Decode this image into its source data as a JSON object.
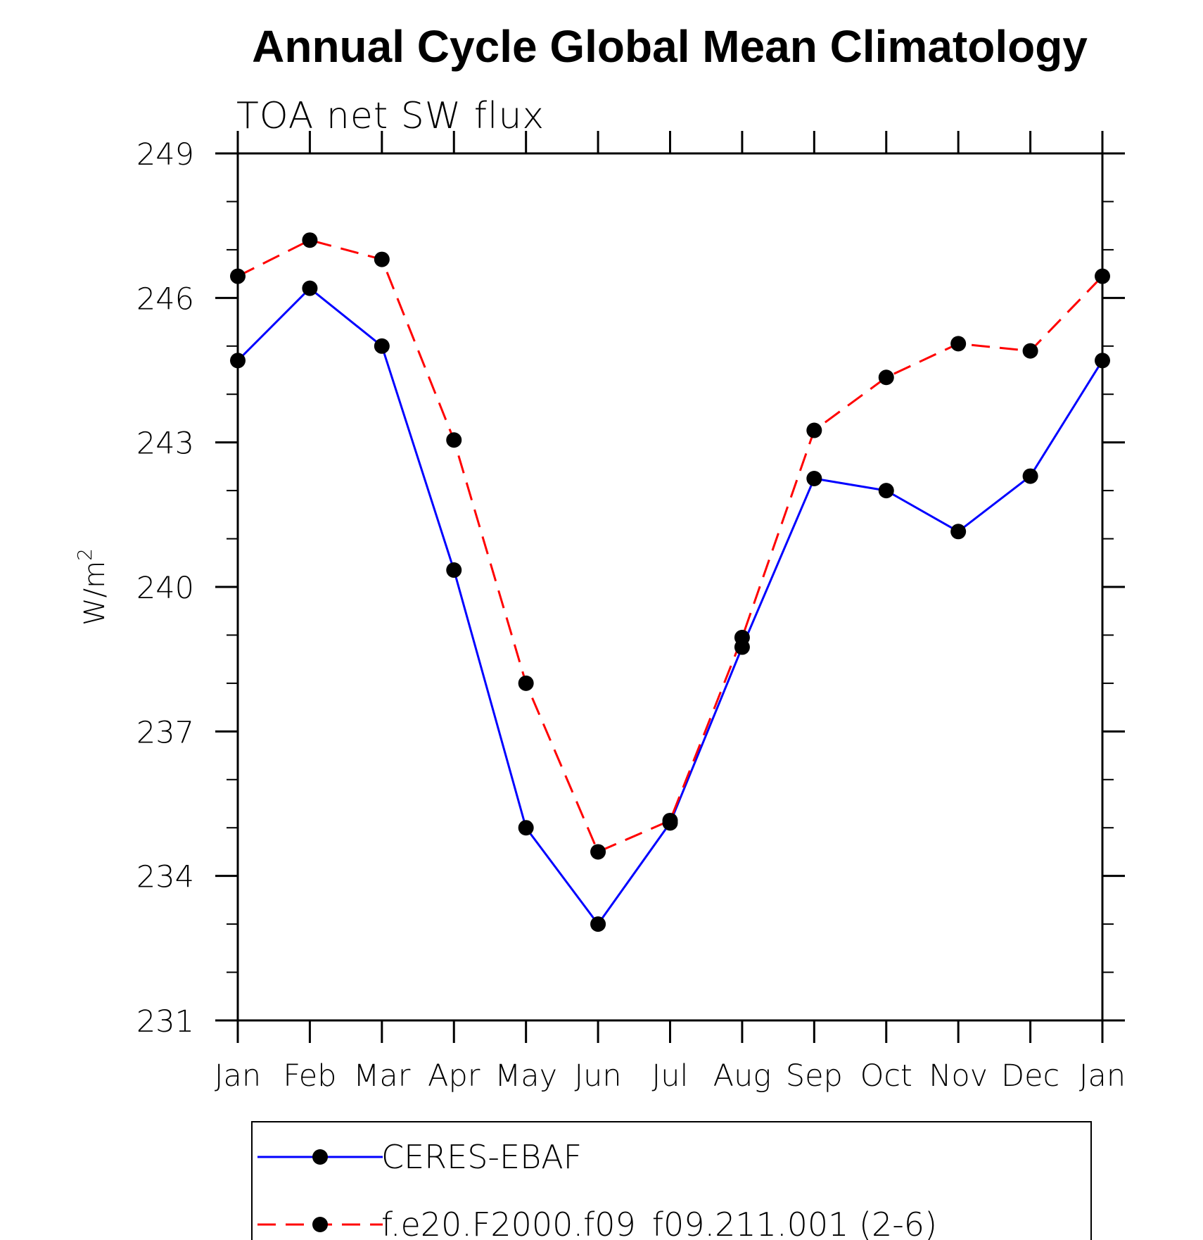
{
  "chart_data": {
    "type": "line",
    "title": "Annual Cycle Global Mean Climatology",
    "subtitle": "TOA net SW flux",
    "ylabel": "W/m",
    "ylabel_superscript": "2",
    "xlabel": "",
    "categories": [
      "Jan",
      "Feb",
      "Mar",
      "Apr",
      "May",
      "Jun",
      "Jul",
      "Aug",
      "Sep",
      "Oct",
      "Nov",
      "Dec",
      "Jan"
    ],
    "ylim": [
      231,
      249
    ],
    "yticks": [
      231,
      234,
      237,
      240,
      243,
      246,
      249
    ],
    "grid": false,
    "legend_position": "bottom",
    "series": [
      {
        "name": "CERES-EBAF",
        "color": "#0000ff",
        "dash": "solid",
        "marker": "filled-circle",
        "values": [
          244.7,
          246.2,
          245.0,
          240.35,
          235.0,
          233.0,
          235.1,
          238.75,
          242.25,
          242.0,
          241.15,
          242.3,
          244.7
        ]
      },
      {
        "name": "f.e20.F2000.f09_f09.211.001 (2-6)",
        "color": "#ff0000",
        "dash": "dashed",
        "marker": "filled-circle",
        "values": [
          246.45,
          247.2,
          246.8,
          243.05,
          238.0,
          234.5,
          235.15,
          238.95,
          243.25,
          244.35,
          245.05,
          244.9,
          246.45
        ]
      }
    ]
  }
}
